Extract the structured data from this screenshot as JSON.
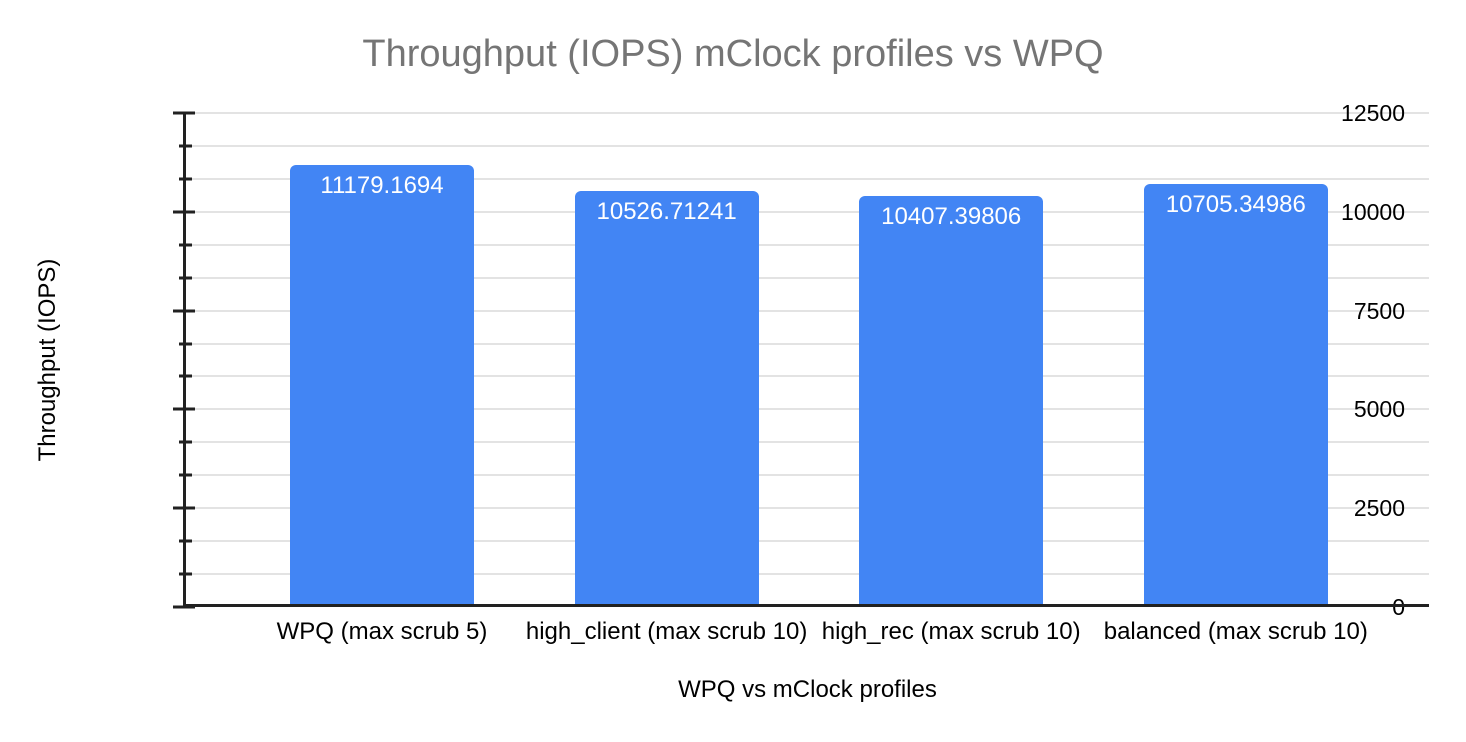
{
  "chart_data": {
    "type": "bar",
    "title": "Throughput (IOPS) mClock profiles vs WPQ",
    "xlabel": "WPQ vs mClock profiles",
    "ylabel": "Throughput (IOPS)",
    "categories": [
      "WPQ (max scrub 5)",
      "high_client (max scrub 10)",
      "high_rec (max scrub 10)",
      "balanced (max scrub 10)"
    ],
    "values": [
      11179.1694,
      10526.71241,
      10407.39806,
      10705.34986
    ],
    "value_labels": [
      "11179.1694",
      "10526.71241",
      "10407.39806",
      "10705.34986"
    ],
    "value_label_position": "inside-top",
    "ylim": [
      0,
      12500
    ],
    "y_major_step": 2500,
    "y_minor_per_major": 3,
    "y_tick_labels": [
      "0",
      "2500",
      "5000",
      "7500",
      "10000",
      "12500"
    ],
    "grid": true,
    "legend": "none",
    "colors": {
      "bar": "#4285f4",
      "bar_label_text": "#ffffff",
      "title_text": "#757575",
      "axis_text": "#000000",
      "gridline": "#e3e3e3",
      "axis_line": "#212121",
      "background": "#ffffff"
    }
  }
}
